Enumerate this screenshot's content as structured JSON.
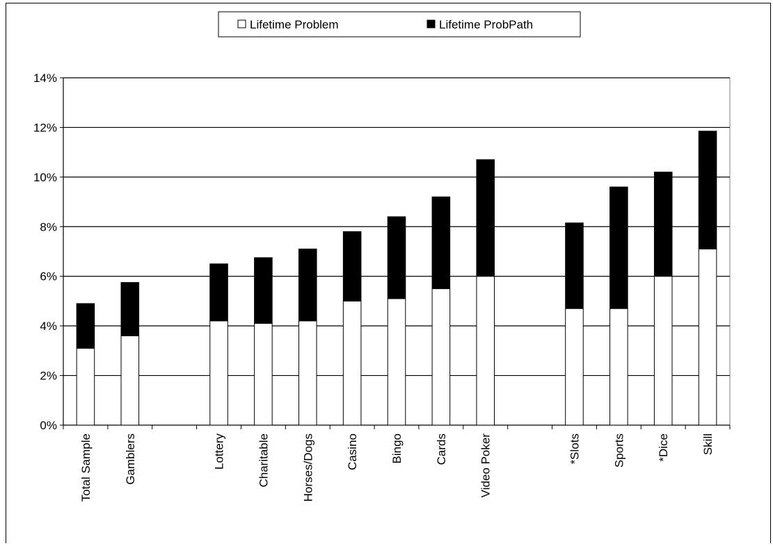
{
  "chart_data": {
    "type": "bar",
    "stacked": true,
    "categories": [
      "Total Sample",
      "Gamblers",
      "",
      "Lottery",
      "Charitable",
      "Horses/Dogs",
      "Casino",
      "Bingo",
      "Cards",
      "Video Poker",
      "",
      "*Slots",
      "Sports",
      "*Dice",
      "Skill"
    ],
    "series": [
      {
        "name": "Lifetime Problem",
        "color": "#ffffff",
        "values": [
          3.1,
          3.6,
          null,
          4.2,
          4.1,
          4.2,
          5.0,
          5.1,
          5.5,
          6.0,
          null,
          4.7,
          4.7,
          6.0,
          7.1
        ]
      },
      {
        "name": "Lifetime ProbPath",
        "color": "#000000",
        "values": [
          1.8,
          2.15,
          null,
          2.3,
          2.65,
          2.9,
          2.8,
          3.3,
          3.7,
          4.7,
          null,
          3.45,
          4.9,
          4.2,
          4.75
        ]
      }
    ],
    "y_ticks": [
      "0%",
      "2%",
      "4%",
      "6%",
      "8%",
      "10%",
      "12%",
      "14%"
    ],
    "ylim": [
      0,
      14
    ],
    "grid": true,
    "legend_position": "top-center"
  }
}
